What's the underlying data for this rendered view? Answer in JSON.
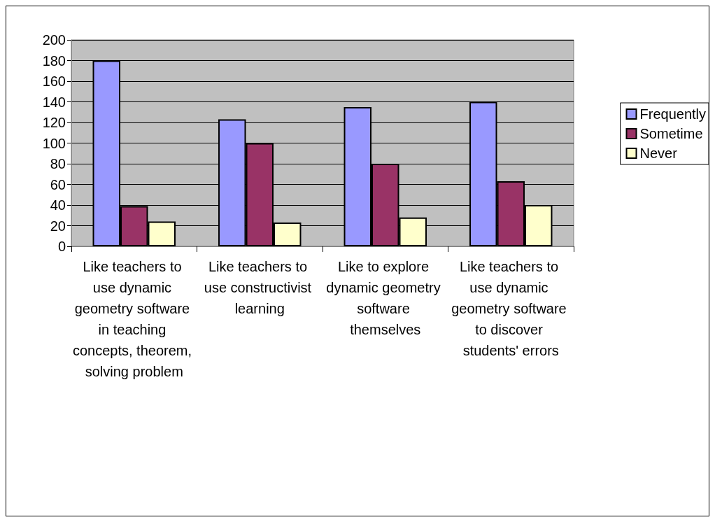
{
  "chart_data": {
    "type": "bar",
    "categories": [
      "Like teachers to use dynamic geometry software in teaching concepts, theorem, solving problem",
      "Like teachers to use constructivist learning",
      "Like to explore dynamic geometry software themselves",
      "Like teachers to use dynamic geometry software to discover students' errors"
    ],
    "series": [
      {
        "name": "Frequently",
        "color": "#9999ff",
        "values": [
          180,
          123,
          135,
          140
        ]
      },
      {
        "name": "Sometime",
        "color": "#993366",
        "values": [
          39,
          100,
          80,
          63
        ]
      },
      {
        "name": "Never",
        "color": "#ffffcc",
        "values": [
          24,
          23,
          28,
          40
        ]
      }
    ],
    "ylim": [
      0,
      200
    ],
    "yticks": [
      0,
      20,
      40,
      60,
      80,
      100,
      120,
      140,
      160,
      180,
      200
    ],
    "grid": "y",
    "legend": "right"
  }
}
